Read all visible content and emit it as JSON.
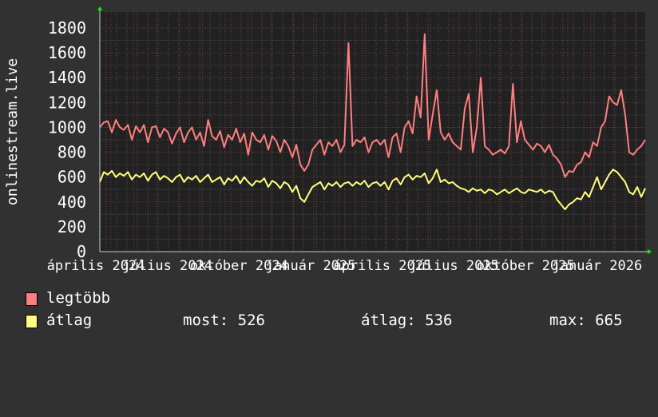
{
  "chart_data": {
    "type": "line",
    "ylabel": "onlinestream.live",
    "ylim": [
      0,
      1800
    ],
    "yticks": [
      0,
      200,
      400,
      600,
      800,
      1000,
      1200,
      1400,
      1600,
      1800
    ],
    "xtick_labels": [
      "április 2024",
      "július 2024",
      "október 2024",
      "január 2025",
      "április 2025",
      "július 2025",
      "október 2025",
      "január 2026"
    ],
    "grid": true,
    "legend_placement": "bottom-left",
    "background": "#212121",
    "series": [
      {
        "name": "legtöbb",
        "color": "#ff7f7f",
        "values": [
          1000,
          1040,
          1050,
          960,
          1060,
          1000,
          980,
          1020,
          900,
          1010,
          960,
          1020,
          880,
          1000,
          1010,
          920,
          990,
          960,
          870,
          950,
          1000,
          880,
          960,
          1000,
          900,
          960,
          850,
          1060,
          930,
          900,
          970,
          840,
          940,
          900,
          990,
          880,
          950,
          780,
          960,
          900,
          880,
          940,
          820,
          930,
          890,
          800,
          900,
          850,
          760,
          860,
          700,
          650,
          700,
          820,
          860,
          900,
          780,
          880,
          850,
          900,
          800,
          860,
          1680,
          850,
          900,
          880,
          920,
          800,
          880,
          900,
          860,
          900,
          760,
          920,
          950,
          800,
          1000,
          1050,
          950,
          1250,
          1080,
          1750,
          900,
          1100,
          1300,
          960,
          900,
          950,
          880,
          850,
          820,
          1150,
          1270,
          800,
          1000,
          1400,
          850,
          820,
          780,
          800,
          820,
          790,
          850,
          1350,
          880,
          1050,
          900,
          860,
          820,
          870,
          850,
          800,
          860,
          780,
          750,
          700,
          600,
          650,
          640,
          700,
          720,
          800,
          760,
          880,
          850,
          1000,
          1050,
          1250,
          1200,
          1180,
          1300,
          1100,
          800,
          780,
          820,
          850,
          900
        ]
      },
      {
        "name": "átlag",
        "color": "#ffff7f",
        "values": [
          560,
          640,
          620,
          650,
          600,
          630,
          610,
          640,
          580,
          620,
          600,
          630,
          570,
          620,
          640,
          580,
          610,
          590,
          560,
          600,
          620,
          560,
          600,
          580,
          610,
          560,
          590,
          620,
          560,
          580,
          600,
          540,
          590,
          570,
          610,
          550,
          600,
          560,
          530,
          570,
          560,
          590,
          520,
          570,
          550,
          510,
          560,
          540,
          480,
          530,
          430,
          400,
          460,
          520,
          540,
          560,
          500,
          550,
          530,
          560,
          520,
          550,
          560,
          530,
          560,
          540,
          570,
          520,
          550,
          560,
          530,
          560,
          500,
          570,
          590,
          540,
          600,
          620,
          580,
          610,
          600,
          630,
          550,
          590,
          660,
          560,
          580,
          550,
          560,
          530,
          510,
          500,
          480,
          510,
          490,
          500,
          470,
          500,
          490,
          460,
          480,
          500,
          470,
          490,
          510,
          480,
          470,
          500,
          490,
          480,
          500,
          470,
          490,
          480,
          420,
          380,
          340,
          380,
          400,
          430,
          420,
          480,
          440,
          520,
          600,
          500,
          560,
          620,
          660,
          640,
          600,
          560,
          480,
          460,
          520,
          440,
          510
        ]
      }
    ]
  },
  "legend": {
    "items": [
      {
        "label": "legtöbb",
        "color": "#ff7f7f"
      },
      {
        "label": "átlag",
        "color": "#ffff7f"
      }
    ],
    "stats": {
      "most": "most: 526",
      "atlag": "átlag: 536",
      "max": "max: 665"
    }
  }
}
